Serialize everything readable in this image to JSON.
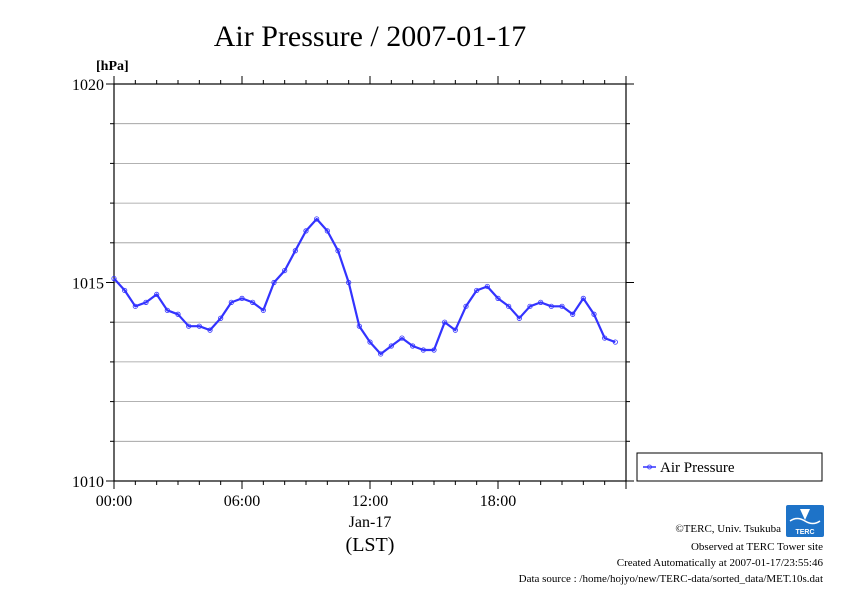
{
  "chart_data": {
    "type": "line",
    "title": "Air Pressure / 2007-01-17",
    "ylabel": "[hPa]",
    "ylim": [
      1010,
      1020
    ],
    "yticks": [
      {
        "value": 1010,
        "label": "1010"
      },
      {
        "value": 1015,
        "label": "1015"
      },
      {
        "value": 1020,
        "label": "1020"
      }
    ],
    "xlim": [
      0,
      24
    ],
    "xticks": [
      {
        "value": 0,
        "label": "00:00"
      },
      {
        "value": 6,
        "label": "06:00"
      },
      {
        "value": 12,
        "label": "12:00"
      },
      {
        "value": 18,
        "label": "18:00"
      }
    ],
    "xlabel_date": "Jan-17",
    "xlabel_unit": "(LST)",
    "grid": true,
    "legend_position": "right",
    "series": [
      {
        "name": "Air Pressure",
        "color": "#3333ff",
        "x": [
          0,
          0.5,
          1,
          1.5,
          2,
          2.5,
          3,
          3.5,
          4,
          4.5,
          5,
          5.5,
          6,
          6.5,
          7,
          7.5,
          8,
          8.5,
          9,
          9.5,
          10,
          10.5,
          11,
          11.5,
          12,
          12.5,
          13,
          13.5,
          14,
          14.5,
          15,
          15.5,
          16,
          16.5,
          17,
          17.5,
          18,
          18.5,
          19,
          19.5,
          20,
          20.5,
          21,
          21.5,
          22,
          22.5,
          23,
          23.5
        ],
        "values": [
          1015.1,
          1014.8,
          1014.4,
          1014.5,
          1014.7,
          1014.3,
          1014.2,
          1013.9,
          1013.9,
          1013.8,
          1014.1,
          1014.5,
          1014.6,
          1014.5,
          1014.3,
          1015.0,
          1015.3,
          1015.8,
          1016.3,
          1016.6,
          1016.3,
          1015.8,
          1015.0,
          1013.9,
          1013.5,
          1013.2,
          1013.4,
          1013.6,
          1013.4,
          1013.3,
          1013.3,
          1014.0,
          1013.8,
          1014.4,
          1014.8,
          1014.9,
          1014.6,
          1014.4,
          1014.1,
          1014.4,
          1014.5,
          1014.4,
          1014.4,
          1014.2,
          1014.6,
          1014.2,
          1013.6,
          1013.5
        ]
      }
    ]
  },
  "footer": {
    "copyright": "©TERC, Univ. Tsukuba",
    "observed": "Observed at TERC Tower site",
    "created": "Created Automatically at 2007-01-17/23:55:46",
    "source": "Data source : /home/hojyo/new/TERC-data/sorted_data/MET.10s.dat"
  },
  "logo": {
    "text": "TERC",
    "color": "#1e73c8"
  }
}
